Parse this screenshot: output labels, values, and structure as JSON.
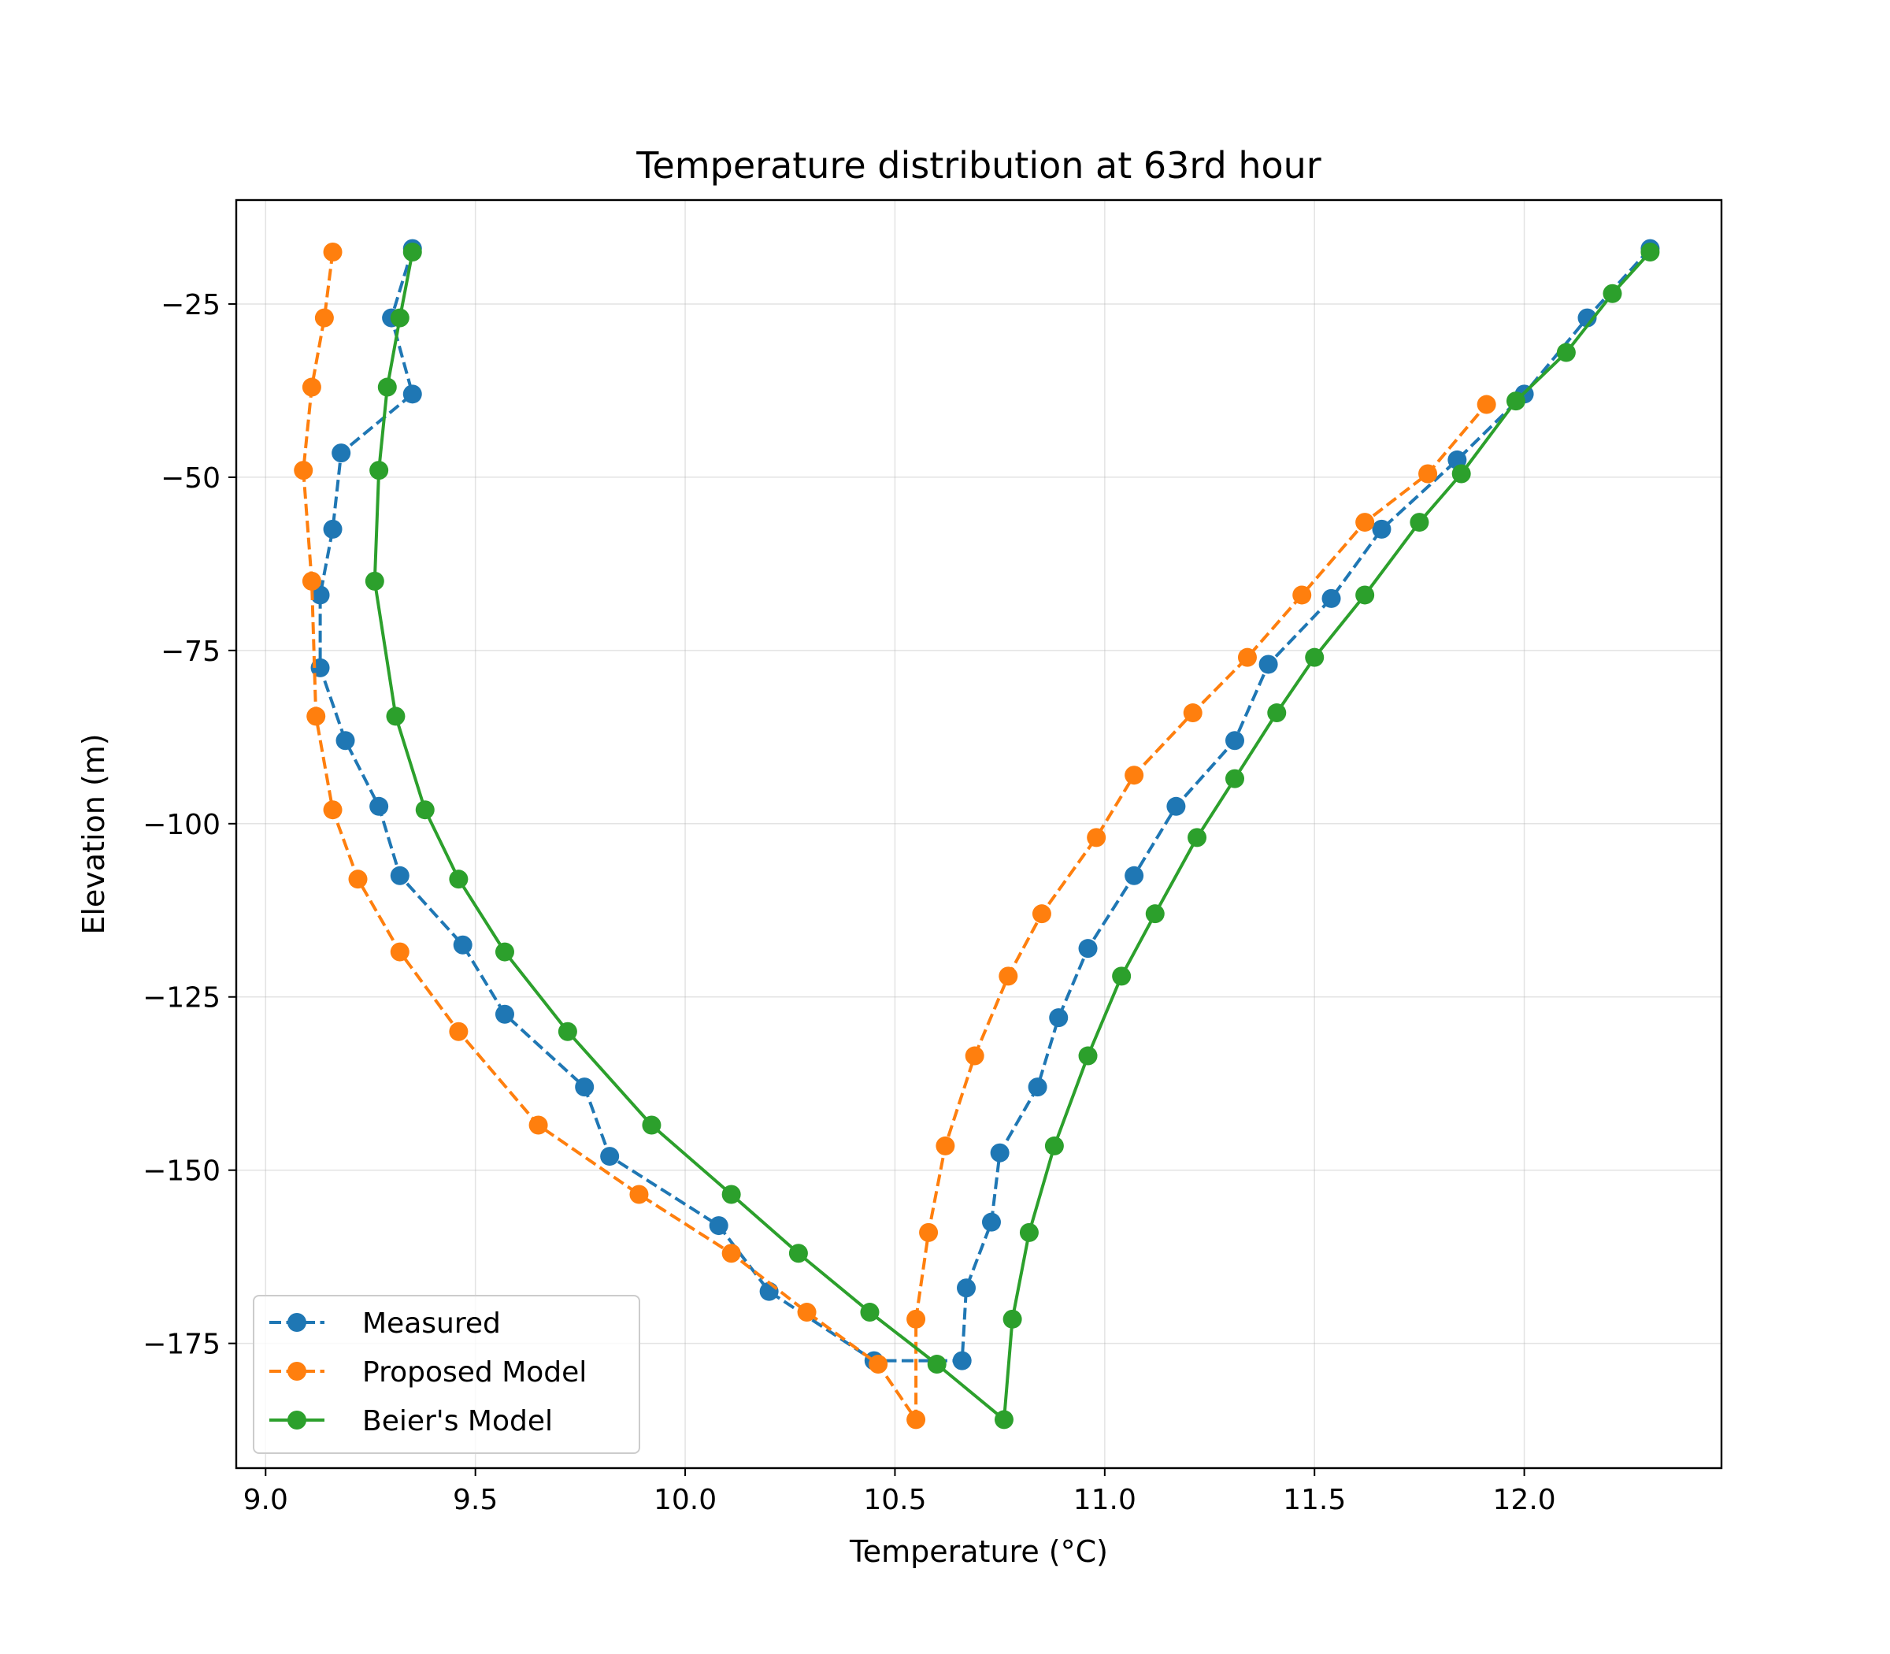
{
  "chart_data": {
    "type": "line",
    "title": "Temperature distribution at 63rd hour",
    "xlabel": "Temperature (°C)",
    "ylabel": "Elevation (m)",
    "xlim": [
      8.93,
      12.47
    ],
    "ylim": [
      -193,
      -10
    ],
    "xticks": [
      {
        "value": 9.0,
        "label": "9.0"
      },
      {
        "value": 9.5,
        "label": "9.5"
      },
      {
        "value": 10.0,
        "label": "10.0"
      },
      {
        "value": 10.5,
        "label": "10.5"
      },
      {
        "value": 11.0,
        "label": "11.0"
      },
      {
        "value": 11.5,
        "label": "11.5"
      },
      {
        "value": 12.0,
        "label": "12.0"
      }
    ],
    "yticks": [
      {
        "value": -25,
        "label": "−25"
      },
      {
        "value": -50,
        "label": "−50"
      },
      {
        "value": -75,
        "label": "−75"
      },
      {
        "value": -100,
        "label": "−100"
      },
      {
        "value": -125,
        "label": "−125"
      },
      {
        "value": -150,
        "label": "−150"
      },
      {
        "value": -175,
        "label": "−175"
      }
    ],
    "grid": true,
    "legend_position": "lower-left",
    "series": [
      {
        "name": "Measured",
        "color": "#1f77b4",
        "linestyle": "dashed",
        "marker": "circle",
        "points": [
          [
            9.35,
            -17
          ],
          [
            9.3,
            -27
          ],
          [
            9.35,
            -38
          ],
          [
            9.18,
            -46.5
          ],
          [
            9.16,
            -57.5
          ],
          [
            9.13,
            -67
          ],
          [
            9.13,
            -77.5
          ],
          [
            9.19,
            -88
          ],
          [
            9.27,
            -97.5
          ],
          [
            9.32,
            -107.5
          ],
          [
            9.47,
            -117.5
          ],
          [
            9.57,
            -127.5
          ],
          [
            9.76,
            -138
          ],
          [
            9.82,
            -148
          ],
          [
            10.08,
            -158
          ],
          [
            10.2,
            -167.5
          ],
          [
            10.45,
            -177.5
          ],
          [
            10.66,
            -177.5
          ],
          [
            10.67,
            -167
          ],
          [
            10.73,
            -157.5
          ],
          [
            10.75,
            -147.5
          ],
          [
            10.84,
            -138
          ],
          [
            10.89,
            -128
          ],
          [
            10.96,
            -118
          ],
          [
            11.07,
            -107.5
          ],
          [
            11.17,
            -97.5
          ],
          [
            11.31,
            -88
          ],
          [
            11.39,
            -77
          ],
          [
            11.54,
            -67.5
          ],
          [
            11.66,
            -57.5
          ],
          [
            11.84,
            -47.5
          ],
          [
            12.0,
            -38
          ],
          [
            12.15,
            -27
          ],
          [
            12.3,
            -17
          ]
        ]
      },
      {
        "name": "Proposed Model",
        "color": "#ff7f0e",
        "linestyle": "dashed",
        "marker": "circle",
        "points": [
          [
            9.16,
            -17.5
          ],
          [
            9.14,
            -27
          ],
          [
            9.11,
            -37
          ],
          [
            9.09,
            -49
          ],
          [
            9.11,
            -65
          ],
          [
            9.12,
            -84.5
          ],
          [
            9.16,
            -98
          ],
          [
            9.22,
            -108
          ],
          [
            9.32,
            -118.5
          ],
          [
            9.46,
            -130
          ],
          [
            9.65,
            -143.5
          ],
          [
            9.89,
            -153.5
          ],
          [
            10.11,
            -162
          ],
          [
            10.29,
            -170.5
          ],
          [
            10.46,
            -178
          ],
          [
            10.55,
            -186
          ],
          [
            10.55,
            -171.5
          ],
          [
            10.58,
            -159
          ],
          [
            10.62,
            -146.5
          ],
          [
            10.69,
            -133.5
          ],
          [
            10.77,
            -122
          ],
          [
            10.85,
            -113
          ],
          [
            10.98,
            -102
          ],
          [
            11.07,
            -93
          ],
          [
            11.21,
            -84
          ],
          [
            11.34,
            -76
          ],
          [
            11.47,
            -67
          ],
          [
            11.62,
            -56.5
          ],
          [
            11.77,
            -49.5
          ],
          [
            11.91,
            -39.5
          ]
        ]
      },
      {
        "name": "Beier's Model",
        "color": "#2ca02c",
        "linestyle": "solid",
        "marker": "circle",
        "points": [
          [
            9.35,
            -17.5
          ],
          [
            9.32,
            -27
          ],
          [
            9.29,
            -37
          ],
          [
            9.27,
            -49
          ],
          [
            9.26,
            -65
          ],
          [
            9.31,
            -84.5
          ],
          [
            9.38,
            -98
          ],
          [
            9.46,
            -108
          ],
          [
            9.57,
            -118.5
          ],
          [
            9.72,
            -130
          ],
          [
            9.92,
            -143.5
          ],
          [
            10.11,
            -153.5
          ],
          [
            10.27,
            -162
          ],
          [
            10.44,
            -170.5
          ],
          [
            10.6,
            -178
          ],
          [
            10.76,
            -186
          ],
          [
            10.78,
            -171.5
          ],
          [
            10.82,
            -159
          ],
          [
            10.88,
            -146.5
          ],
          [
            10.96,
            -133.5
          ],
          [
            11.04,
            -122
          ],
          [
            11.12,
            -113
          ],
          [
            11.22,
            -102
          ],
          [
            11.31,
            -93.5
          ],
          [
            11.41,
            -84
          ],
          [
            11.5,
            -76
          ],
          [
            11.62,
            -67
          ],
          [
            11.75,
            -56.5
          ],
          [
            11.85,
            -49.5
          ],
          [
            11.98,
            -39
          ],
          [
            12.1,
            -32
          ],
          [
            12.21,
            -23.5
          ],
          [
            12.3,
            -17.5
          ]
        ]
      }
    ]
  }
}
